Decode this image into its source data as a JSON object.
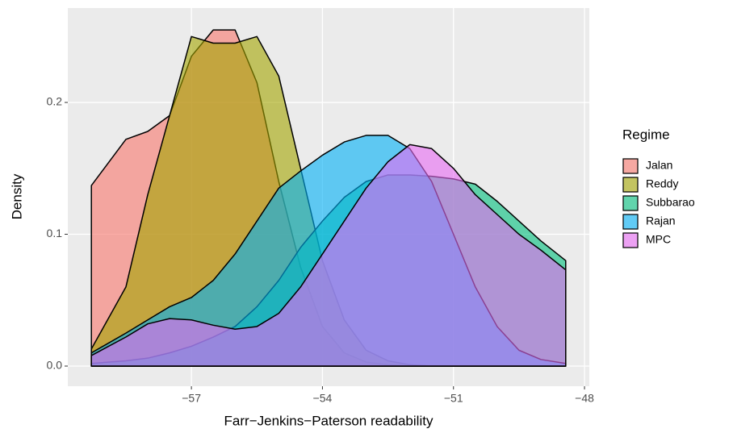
{
  "chart_data": {
    "type": "density",
    "x_label": "Farr−Jenkins−Paterson readability",
    "y_label": "Density",
    "legend_title": "Regime",
    "legend_position": "right",
    "grid": true,
    "fill_opacity": 0.6,
    "x": [
      -59.29,
      -58.5,
      -58,
      -57.5,
      -57,
      -56.5,
      -56,
      -55.5,
      -55,
      -54.5,
      -54,
      -53.5,
      -53,
      -52.5,
      -52,
      -51.5,
      -51,
      -50.5,
      -50,
      -49.5,
      -49,
      -48.43
    ],
    "series": [
      {
        "name": "Jalan",
        "color": "#F8766D",
        "values": [
          0.137,
          0.172,
          0.178,
          0.19,
          0.235,
          0.255,
          0.255,
          0.215,
          0.14,
          0.075,
          0.03,
          0.01,
          0.003,
          0.001,
          0,
          0,
          0,
          0,
          0,
          0,
          0,
          0
        ]
      },
      {
        "name": "Reddy",
        "color": "#A3A500",
        "values": [
          0.013,
          0.06,
          0.13,
          0.19,
          0.25,
          0.245,
          0.245,
          0.25,
          0.22,
          0.15,
          0.08,
          0.035,
          0.012,
          0.004,
          0.001,
          0,
          0,
          0,
          0,
          0,
          0,
          0
        ]
      },
      {
        "name": "Subbarao",
        "color": "#00BF7D",
        "values": [
          0.002,
          0.004,
          0.006,
          0.01,
          0.015,
          0.022,
          0.03,
          0.045,
          0.065,
          0.09,
          0.11,
          0.128,
          0.14,
          0.145,
          0.145,
          0.144,
          0.142,
          0.138,
          0.125,
          0.11,
          0.095,
          0.08
        ]
      },
      {
        "name": "Rajan",
        "color": "#00B0F6",
        "values": [
          0.01,
          0.025,
          0.035,
          0.045,
          0.052,
          0.065,
          0.085,
          0.11,
          0.135,
          0.148,
          0.16,
          0.17,
          0.175,
          0.175,
          0.165,
          0.14,
          0.1,
          0.06,
          0.03,
          0.012,
          0.005,
          0.002
        ]
      },
      {
        "name": "MPC",
        "color": "#E76BF3",
        "values": [
          0.008,
          0.022,
          0.032,
          0.036,
          0.035,
          0.031,
          0.028,
          0.03,
          0.04,
          0.06,
          0.085,
          0.11,
          0.135,
          0.155,
          0.168,
          0.165,
          0.15,
          0.13,
          0.115,
          0.1,
          0.088,
          0.073
        ]
      }
    ],
    "xlim": [
      -59.83,
      -47.89
    ],
    "xticks": [
      {
        "value": -57,
        "label": "−57"
      },
      {
        "value": -54,
        "label": "−54"
      },
      {
        "value": -51,
        "label": "−51"
      },
      {
        "value": -48,
        "label": "−48"
      }
    ],
    "ylim": [
      -0.0153,
      0.2716
    ],
    "yticks": [
      {
        "value": 0,
        "label": "0.0"
      },
      0.1,
      0.2
    ]
  }
}
